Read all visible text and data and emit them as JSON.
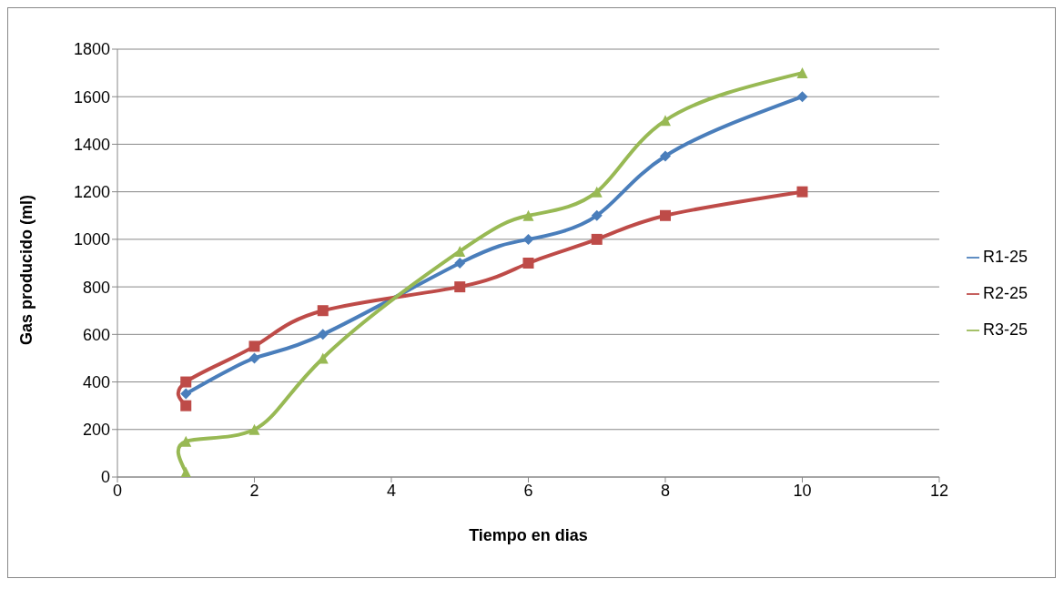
{
  "chart_data": {
    "type": "line",
    "xlabel": "Tiempo en dias",
    "ylabel": "Gas producido (ml)",
    "xlim": [
      0,
      12
    ],
    "xticks": [
      0,
      2,
      4,
      6,
      8,
      10,
      12
    ],
    "ylim": [
      0,
      1800
    ],
    "yticks": [
      0,
      200,
      400,
      600,
      800,
      1000,
      1200,
      1400,
      1600,
      1800
    ],
    "grid": "y",
    "legend": "right",
    "line_style": "solid",
    "series": [
      {
        "name": "R1-25",
        "color": "#4a7ebb",
        "marker": "diamond",
        "x": [
          1,
          2,
          3,
          5,
          6,
          7,
          8,
          10
        ],
        "values": [
          350,
          500,
          600,
          900,
          1000,
          1100,
          1350,
          1600
        ]
      },
      {
        "name": "R2-25",
        "color": "#be4b48",
        "marker": "square",
        "x": [
          1,
          1,
          2,
          3,
          5,
          6,
          7,
          8,
          10
        ],
        "values": [
          300,
          400,
          550,
          700,
          800,
          900,
          1000,
          1100,
          1200
        ]
      },
      {
        "name": "R3-25",
        "color": "#98b954",
        "marker": "triangle",
        "x": [
          1,
          1,
          2,
          3,
          5,
          6,
          7,
          8,
          10
        ],
        "values": [
          20,
          150,
          200,
          500,
          950,
          1100,
          1200,
          1500,
          1700
        ]
      }
    ]
  }
}
